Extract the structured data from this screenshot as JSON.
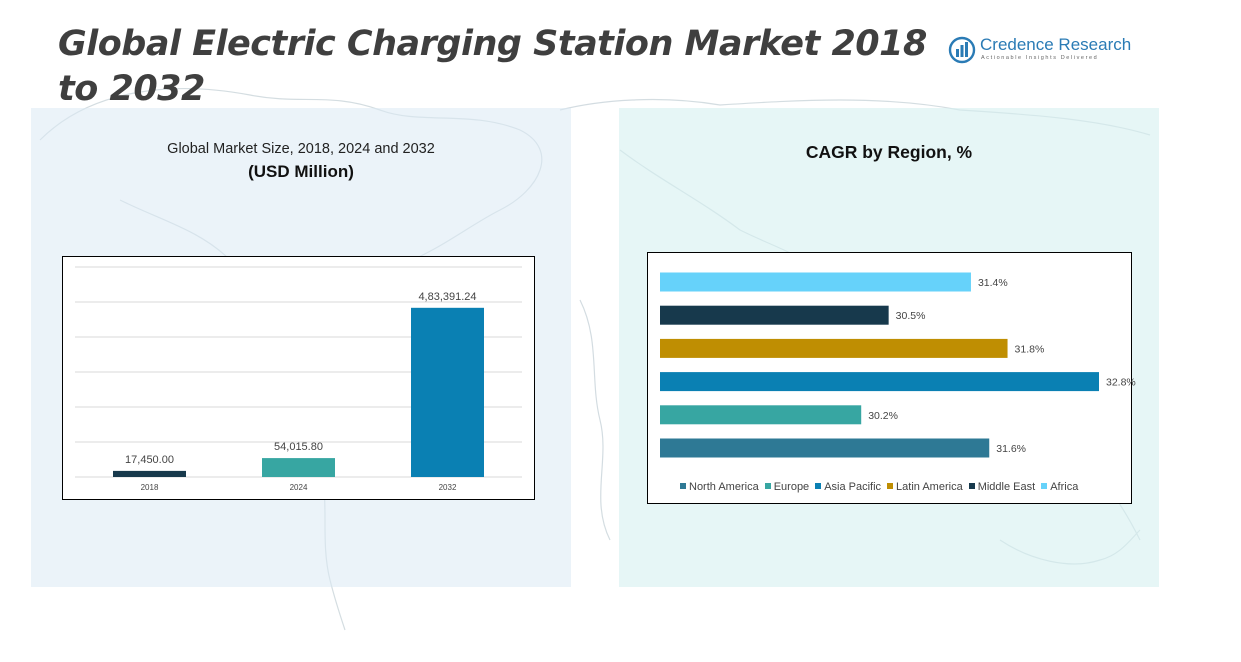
{
  "title": "Global Electric Charging Station Market 2018 to 2032",
  "logo": {
    "name": "Credence Research",
    "tagline": "Actionable Insights Delivered",
    "icon": "bar-chart-logo-icon"
  },
  "left_panel": {
    "subtitle": "Global Market Size, 2018, 2024 and 2032",
    "unit_label": "(USD Million)"
  },
  "right_panel": {
    "title": "CAGR by Region, %"
  },
  "colors": {
    "dark_navy": "#17394c",
    "teal": "#37a6a2",
    "blue": "#0a80b3",
    "steel_blue": "#2e7995",
    "gold": "#bf8e02",
    "sky": "#66d2fa"
  },
  "chart_data": [
    {
      "type": "bar",
      "title": "Global Market Size, 2018, 2024 and 2032",
      "ylabel": "(USD Million)",
      "xlabel": "",
      "categories": [
        "2018",
        "2024",
        "2032"
      ],
      "values": [
        17450.0,
        54015.8,
        483391.24
      ],
      "value_labels": [
        "17,450.00",
        "54,015.80",
        "4,83,391.24"
      ],
      "bar_colors": [
        "#17394c",
        "#37a6a2",
        "#0a80b3"
      ],
      "ylim": [
        0,
        600000
      ],
      "grid": true,
      "legend": false
    },
    {
      "type": "bar",
      "orientation": "horizontal",
      "title": "CAGR by Region, %",
      "categories": [
        "North America",
        "Europe",
        "Asia Pacific",
        "Latin America",
        "Middle East",
        "Africa"
      ],
      "values": [
        31.6,
        30.2,
        32.8,
        31.8,
        30.5,
        31.4
      ],
      "value_labels": [
        "31.6%",
        "30.2%",
        "32.8%",
        "31.8%",
        "30.5%",
        "31.4%"
      ],
      "bar_colors": [
        "#2e7995",
        "#37a6a2",
        "#0a80b3",
        "#bf8e02",
        "#17394c",
        "#66d2fa"
      ],
      "xlim": [
        28.0,
        32.8
      ],
      "grid": false,
      "legend": "bottom"
    }
  ]
}
